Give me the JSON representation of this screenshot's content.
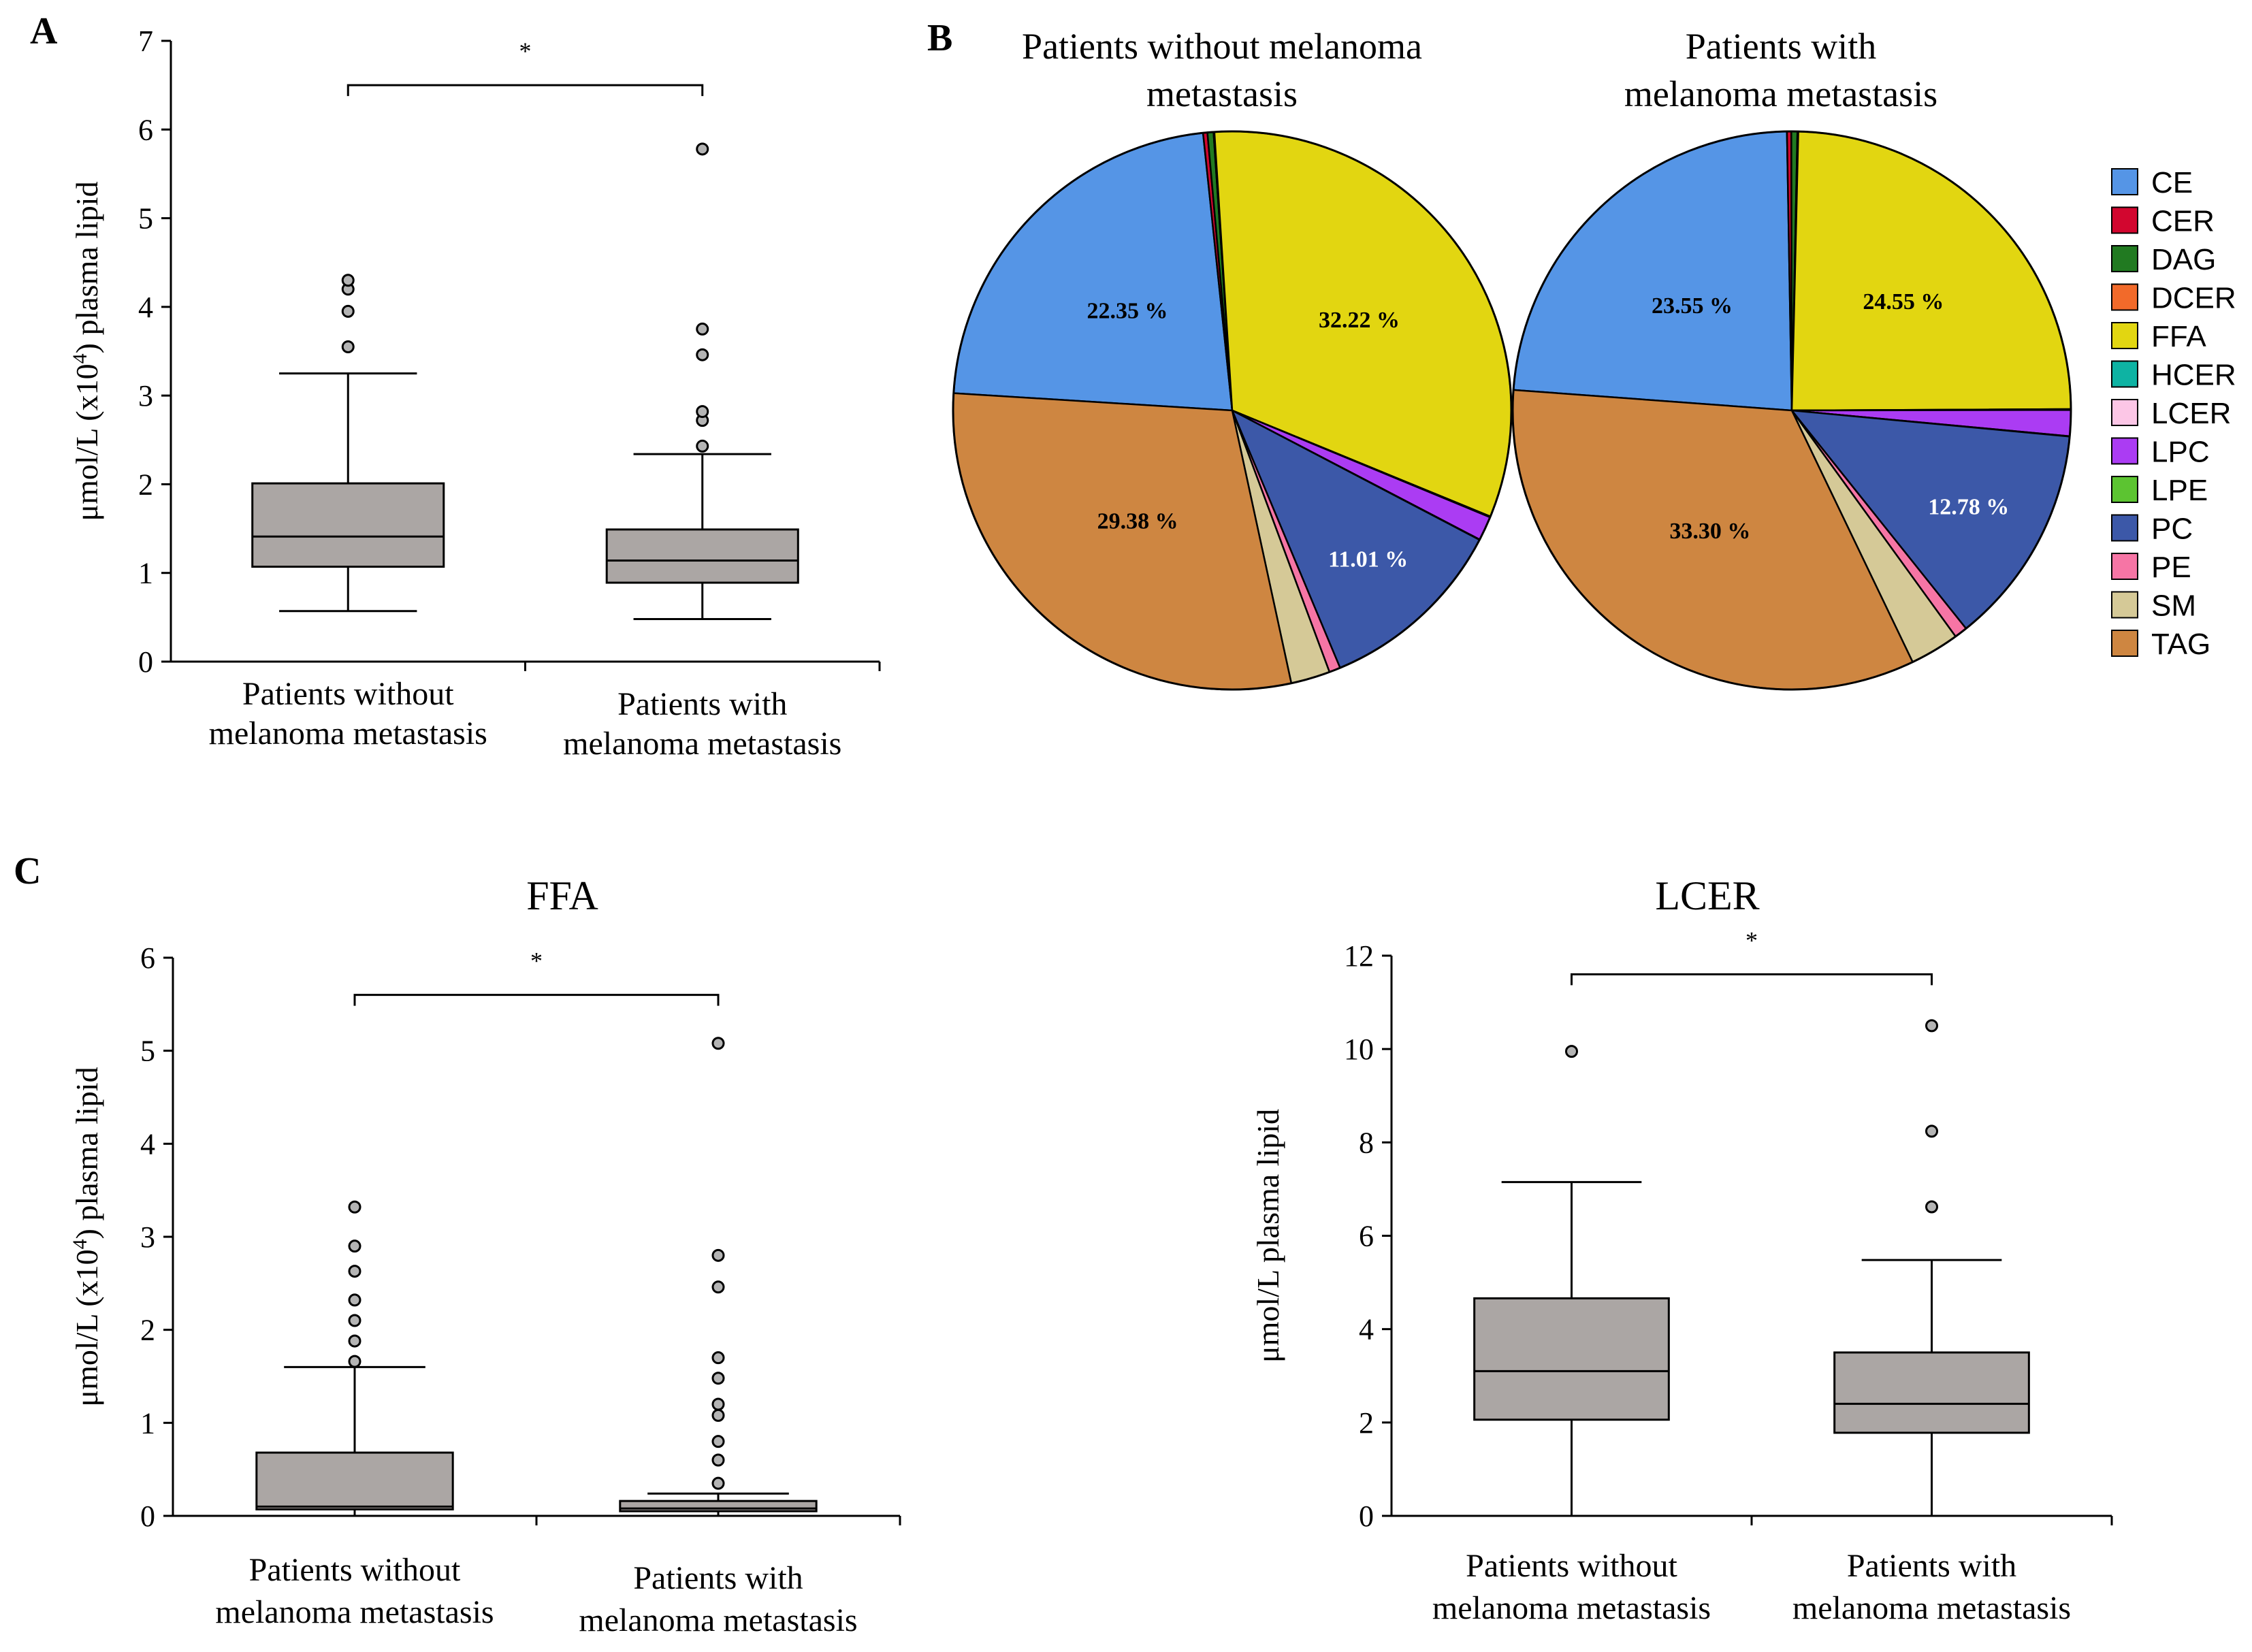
{
  "chart_data": [
    {
      "panel": "A",
      "type": "boxplot",
      "title": "",
      "ylabel_parts": [
        "μmol/L (x10",
        "4",
        ") plasma lipid"
      ],
      "ylim": [
        0,
        7
      ],
      "yticks": [
        0,
        1,
        2,
        3,
        4,
        5,
        6,
        7
      ],
      "categories": [
        [
          "Patients without",
          "melanoma metastasis"
        ],
        [
          "Patients with",
          "melanoma metastasis"
        ]
      ],
      "boxes": [
        {
          "whisker_low": 0.57,
          "q1": 1.07,
          "median": 1.41,
          "q3": 2.01,
          "whisker_high": 3.25,
          "outliers": [
            3.55,
            3.95,
            4.2,
            4.3
          ]
        },
        {
          "whisker_low": 0.48,
          "q1": 0.89,
          "median": 1.14,
          "q3": 1.49,
          "whisker_high": 2.34,
          "outliers": [
            2.43,
            2.72,
            2.82,
            3.46,
            3.75,
            5.78
          ]
        }
      ],
      "significance": {
        "from": 0,
        "to": 1,
        "y": 6.5,
        "label": "*"
      }
    },
    {
      "panel": "B",
      "type": "pie",
      "legend": [
        {
          "name": "CE",
          "color": "#5595E6"
        },
        {
          "name": "CER",
          "color": "#D2062F"
        },
        {
          "name": "DAG",
          "color": "#217A21"
        },
        {
          "name": "DCER",
          "color": "#F26A2A"
        },
        {
          "name": "FFA",
          "color": "#E2D611"
        },
        {
          "name": "HCER",
          "color": "#0EB3A3"
        },
        {
          "name": "LCER",
          "color": "#FCC6E6"
        },
        {
          "name": "LPC",
          "color": "#AB3CF3"
        },
        {
          "name": "LPE",
          "color": "#5CC431"
        },
        {
          "name": "PC",
          "color": "#3C58A8"
        },
        {
          "name": "PE",
          "color": "#F675A5"
        },
        {
          "name": "SM",
          "color": "#D5C997"
        },
        {
          "name": "TAG",
          "color": "#CE8641"
        }
      ],
      "pies": [
        {
          "title": [
            "Patients without melanoma",
            "metastasis"
          ],
          "slices": [
            {
              "name": "CE",
              "value": 22.35,
              "label": "22.35 %"
            },
            {
              "name": "CER",
              "value": 0.25,
              "label": ""
            },
            {
              "name": "DAG",
              "value": 0.35,
              "label": ""
            },
            {
              "name": "DCER",
              "value": 0.05,
              "label": ""
            },
            {
              "name": "FFA",
              "value": 32.22,
              "label": "32.22 %"
            },
            {
              "name": "HCER",
              "value": 0.02,
              "label": ""
            },
            {
              "name": "LCER",
              "value": 0.03,
              "label": ""
            },
            {
              "name": "LPC",
              "value": 1.4,
              "label": ""
            },
            {
              "name": "LPE",
              "value": 0.02,
              "label": ""
            },
            {
              "name": "PC",
              "value": 11.01,
              "label": "11.01 %"
            },
            {
              "name": "PE",
              "value": 0.65,
              "label": ""
            },
            {
              "name": "SM",
              "value": 2.27,
              "label": ""
            },
            {
              "name": "TAG",
              "value": 29.38,
              "label": "29.38 %"
            }
          ]
        },
        {
          "title": [
            "Patients with",
            "melanoma metastasis"
          ],
          "slices": [
            {
              "name": "CE",
              "value": 23.55,
              "label": "23.55 %"
            },
            {
              "name": "CER",
              "value": 0.25,
              "label": ""
            },
            {
              "name": "DAG",
              "value": 0.35,
              "label": ""
            },
            {
              "name": "DCER",
              "value": 0.05,
              "label": ""
            },
            {
              "name": "FFA",
              "value": 24.55,
              "label": "24.55 %"
            },
            {
              "name": "HCER",
              "value": 0.02,
              "label": ""
            },
            {
              "name": "LCER",
              "value": 0.03,
              "label": ""
            },
            {
              "name": "LPC",
              "value": 1.5,
              "label": ""
            },
            {
              "name": "LPE",
              "value": 0.02,
              "label": ""
            },
            {
              "name": "PC",
              "value": 12.78,
              "label": "12.78 %"
            },
            {
              "name": "PE",
              "value": 0.75,
              "label": ""
            },
            {
              "name": "SM",
              "value": 2.85,
              "label": ""
            },
            {
              "name": "TAG",
              "value": 33.3,
              "label": "33.30 %"
            }
          ]
        }
      ]
    },
    {
      "panel": "C",
      "type": "boxplot",
      "title": "FFA",
      "ylabel_parts": [
        "μmol/L (x10",
        "4",
        ") plasma lipid"
      ],
      "ylim": [
        0,
        6
      ],
      "yticks": [
        0,
        1,
        2,
        3,
        4,
        5,
        6
      ],
      "categories": [
        [
          "Patients without",
          "melanoma metastasis"
        ],
        [
          "Patients with",
          "melanoma metastasis"
        ]
      ],
      "boxes": [
        {
          "whisker_low": 0.0,
          "q1": 0.07,
          "median": 0.1,
          "q3": 0.68,
          "whisker_high": 1.6,
          "outliers": [
            1.66,
            1.88,
            2.1,
            2.32,
            2.63,
            2.9,
            3.32
          ]
        },
        {
          "whisker_low": 0.0,
          "q1": 0.05,
          "median": 0.08,
          "q3": 0.16,
          "whisker_high": 0.24,
          "outliers": [
            0.35,
            0.6,
            0.8,
            1.08,
            1.2,
            1.48,
            1.7,
            2.46,
            2.8,
            5.08
          ]
        }
      ],
      "significance": {
        "from": 0,
        "to": 1,
        "y": 5.6,
        "label": "*"
      }
    },
    {
      "panel": "",
      "type": "boxplot",
      "title": "LCER",
      "ylabel_parts": [
        "μmol/L plasma lipid"
      ],
      "ylim": [
        0,
        12
      ],
      "yticks": [
        0,
        2,
        4,
        6,
        8,
        10,
        12
      ],
      "categories": [
        [
          "Patients without",
          "melanoma metastasis"
        ],
        [
          "Patients with",
          "melanoma metastasis"
        ]
      ],
      "boxes": [
        {
          "whisker_low": 0.0,
          "q1": 2.06,
          "median": 3.1,
          "q3": 4.66,
          "whisker_high": 7.15,
          "outliers": [
            9.95
          ]
        },
        {
          "whisker_low": 0.0,
          "q1": 1.78,
          "median": 2.4,
          "q3": 3.5,
          "whisker_high": 5.48,
          "outliers": [
            6.62,
            8.24,
            10.5
          ]
        }
      ],
      "significance": {
        "from": 0,
        "to": 1,
        "y": 11.6,
        "label": "*"
      }
    }
  ]
}
